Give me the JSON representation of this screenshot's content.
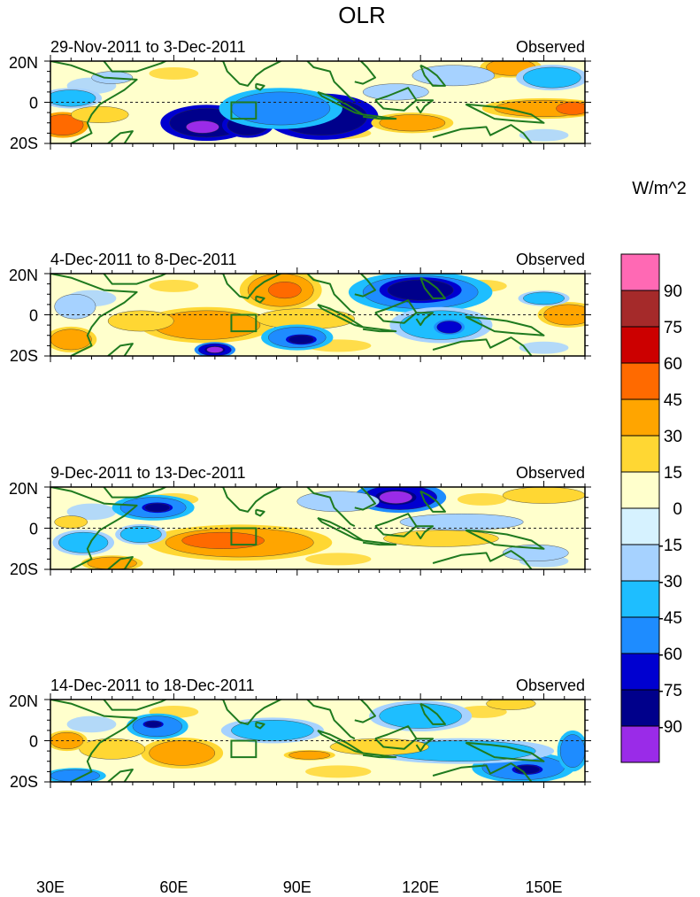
{
  "chart_data": {
    "type": "heatmap",
    "title": "OLR",
    "units_label": "W/m^2",
    "x_ticks": [
      30,
      60,
      90,
      120,
      150
    ],
    "x_tick_labels": [
      "30E",
      "60E",
      "90E",
      "120E",
      "150E"
    ],
    "xlim": [
      30,
      160
    ],
    "ylim": [
      -20,
      20
    ],
    "y_tick_labels": [
      "20N",
      "0",
      "20S"
    ],
    "reference_line_lat": 0,
    "box_region": {
      "lon": [
        74,
        80
      ],
      "lat": [
        -8,
        0
      ]
    },
    "colorbar": {
      "labels": [
        "90",
        "75",
        "60",
        "45",
        "30",
        "15",
        "0",
        "-15",
        "-30",
        "-45",
        "-60",
        "-75",
        "-90"
      ],
      "colors": [
        "#FF69B4",
        "#A52A2A",
        "#CC0000",
        "#FF6A00",
        "#FFA500",
        "#FFD733",
        "#FFFFCC",
        "#D6F2FF",
        "#A6D2FF",
        "#1EBEFF",
        "#1E8CFF",
        "#0000D0",
        "#00008B",
        "#9A2BE8"
      ]
    },
    "panels": [
      {
        "period": "29-Nov-2011 to 3-Dec-2011",
        "label": "Observed",
        "features": [
          {
            "lon": 68,
            "lat": -10,
            "rx": 9,
            "ry": 7,
            "level": -75
          },
          {
            "lon": 67,
            "lat": -12,
            "rx": 4,
            "ry": 3,
            "level": -90
          },
          {
            "lon": 78,
            "lat": -11,
            "rx": 5,
            "ry": 5,
            "level": -75
          },
          {
            "lon": 96,
            "lat": -7,
            "rx": 11,
            "ry": 9,
            "level": -75
          },
          {
            "lon": 86,
            "lat": -3,
            "rx": 12,
            "ry": 8,
            "level": -45
          },
          {
            "lon": 35,
            "lat": 2,
            "rx": 6,
            "ry": 4,
            "level": -30
          },
          {
            "lon": 45,
            "lat": 12,
            "rx": 5,
            "ry": 3,
            "level": -15
          },
          {
            "lon": 33,
            "lat": -11,
            "rx": 5,
            "ry": 5,
            "level": 45
          },
          {
            "lon": 42,
            "lat": -6,
            "rx": 7,
            "ry": 4,
            "level": 15
          },
          {
            "lon": 118,
            "lat": -10,
            "rx": 8,
            "ry": 4,
            "level": 30
          },
          {
            "lon": 150,
            "lat": -3,
            "rx": 12,
            "ry": 4,
            "level": 30
          },
          {
            "lon": 157,
            "lat": -3,
            "rx": 4,
            "ry": 3,
            "level": 45
          },
          {
            "lon": 142,
            "lat": 17,
            "rx": 6,
            "ry": 4,
            "level": 30
          },
          {
            "lon": 128,
            "lat": 13,
            "rx": 10,
            "ry": 5,
            "level": -15
          },
          {
            "lon": 152,
            "lat": 12,
            "rx": 7,
            "ry": 5,
            "level": -30
          },
          {
            "lon": 114,
            "lat": 5,
            "rx": 8,
            "ry": 4,
            "level": -15
          }
        ]
      },
      {
        "period": "4-Dec-2011 to 8-Dec-2011",
        "label": "Observed",
        "features": [
          {
            "lon": 68,
            "lat": -5,
            "rx": 13,
            "ry": 7,
            "level": 30
          },
          {
            "lon": 52,
            "lat": -3,
            "rx": 8,
            "ry": 5,
            "level": 15
          },
          {
            "lon": 86,
            "lat": 12,
            "rx": 8,
            "ry": 8,
            "level": 30
          },
          {
            "lon": 87,
            "lat": 12,
            "rx": 4,
            "ry": 4,
            "level": 45
          },
          {
            "lon": 92,
            "lat": -2,
            "rx": 12,
            "ry": 5,
            "level": 15
          },
          {
            "lon": 120,
            "lat": 11,
            "rx": 14,
            "ry": 8,
            "level": -45
          },
          {
            "lon": 120,
            "lat": 12,
            "rx": 8,
            "ry": 5,
            "level": -75
          },
          {
            "lon": 125,
            "lat": -5,
            "rx": 10,
            "ry": 7,
            "level": -30
          },
          {
            "lon": 127,
            "lat": -6,
            "rx": 3,
            "ry": 3,
            "level": -60
          },
          {
            "lon": 90,
            "lat": -11,
            "rx": 7,
            "ry": 5,
            "level": -45
          },
          {
            "lon": 91,
            "lat": -12,
            "rx": 3,
            "ry": 2,
            "level": -75
          },
          {
            "lon": 70,
            "lat": -17,
            "rx": 4,
            "ry": 3,
            "level": -60
          },
          {
            "lon": 70,
            "lat": -17,
            "rx": 2,
            "ry": 1.5,
            "level": -90
          },
          {
            "lon": 156,
            "lat": 0,
            "rx": 6,
            "ry": 5,
            "level": 30
          },
          {
            "lon": 150,
            "lat": 8,
            "rx": 5,
            "ry": 3,
            "level": -30
          },
          {
            "lon": 35,
            "lat": -12,
            "rx": 5,
            "ry": 5,
            "level": 30
          },
          {
            "lon": 36,
            "lat": 4,
            "rx": 5,
            "ry": 6,
            "level": -15
          }
        ]
      },
      {
        "period": "9-Dec-2011 to 13-Dec-2011",
        "label": "Observed",
        "features": [
          {
            "lon": 76,
            "lat": -7,
            "rx": 18,
            "ry": 7,
            "level": 30
          },
          {
            "lon": 72,
            "lat": -6,
            "rx": 10,
            "ry": 4,
            "level": 45
          },
          {
            "lon": 55,
            "lat": 10,
            "rx": 8,
            "ry": 5,
            "level": -45
          },
          {
            "lon": 56,
            "lat": 10,
            "rx": 3,
            "ry": 2,
            "level": -75
          },
          {
            "lon": 115,
            "lat": 15,
            "rx": 9,
            "ry": 6,
            "level": -60
          },
          {
            "lon": 114,
            "lat": 15,
            "rx": 4,
            "ry": 3,
            "level": -90
          },
          {
            "lon": 38,
            "lat": -7,
            "rx": 6,
            "ry": 5,
            "level": -30
          },
          {
            "lon": 52,
            "lat": -3,
            "rx": 5,
            "ry": 4,
            "level": -30
          },
          {
            "lon": 35,
            "lat": 3,
            "rx": 4,
            "ry": 3,
            "level": 15
          },
          {
            "lon": 150,
            "lat": 16,
            "rx": 10,
            "ry": 4,
            "level": 15
          },
          {
            "lon": 125,
            "lat": -5,
            "rx": 14,
            "ry": 4,
            "level": 15
          },
          {
            "lon": 100,
            "lat": 13,
            "rx": 10,
            "ry": 5,
            "level": -15
          },
          {
            "lon": 130,
            "lat": 3,
            "rx": 15,
            "ry": 4,
            "level": -15
          },
          {
            "lon": 148,
            "lat": -12,
            "rx": 8,
            "ry": 4,
            "level": -15
          },
          {
            "lon": 45,
            "lat": -17,
            "rx": 6,
            "ry": 3,
            "level": 30
          }
        ]
      },
      {
        "period": "14-Dec-2011 to 18-Dec-2011",
        "label": "Observed",
        "features": [
          {
            "lon": 56,
            "lat": 7,
            "rx": 6,
            "ry": 5,
            "level": -45
          },
          {
            "lon": 55,
            "lat": 8,
            "rx": 2,
            "ry": 1.5,
            "level": -75
          },
          {
            "lon": 62,
            "lat": -6,
            "rx": 8,
            "ry": 6,
            "level": 30
          },
          {
            "lon": 45,
            "lat": -4,
            "rx": 8,
            "ry": 5,
            "level": 15
          },
          {
            "lon": 145,
            "lat": -13,
            "rx": 10,
            "ry": 6,
            "level": -45
          },
          {
            "lon": 146,
            "lat": -14,
            "rx": 3,
            "ry": 2,
            "level": -75
          },
          {
            "lon": 130,
            "lat": -5,
            "rx": 18,
            "ry": 5,
            "level": -30
          },
          {
            "lon": 120,
            "lat": 12,
            "rx": 10,
            "ry": 6,
            "level": -30
          },
          {
            "lon": 84,
            "lat": 5,
            "rx": 10,
            "ry": 5,
            "level": -30
          },
          {
            "lon": 142,
            "lat": 18,
            "rx": 6,
            "ry": 3,
            "level": 15
          },
          {
            "lon": 93,
            "lat": -7,
            "rx": 5,
            "ry": 2,
            "level": 30
          },
          {
            "lon": 36,
            "lat": -17,
            "rx": 6,
            "ry": 3,
            "level": -45
          },
          {
            "lon": 157,
            "lat": -5,
            "rx": 3,
            "ry": 8,
            "level": -45
          },
          {
            "lon": 34,
            "lat": 0,
            "rx": 4,
            "ry": 4,
            "level": 30
          },
          {
            "lon": 110,
            "lat": -3,
            "rx": 12,
            "ry": 4,
            "level": 15
          }
        ]
      }
    ]
  }
}
